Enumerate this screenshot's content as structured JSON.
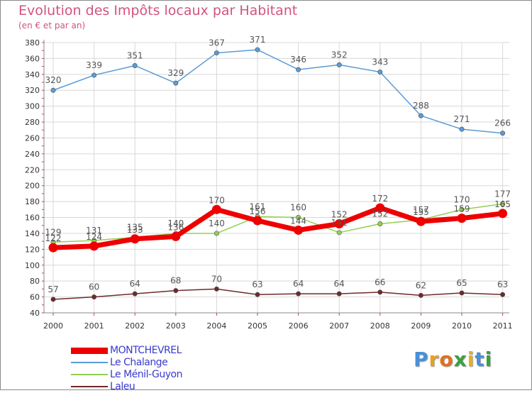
{
  "title": "Evolution des Impôts locaux par Habitant",
  "subtitle": "(en € et par an)",
  "logo": {
    "letters": [
      "P",
      "r",
      "o",
      "x",
      "i",
      "t",
      "i"
    ],
    "colors": [
      "#4a8fd8",
      "#e8a020",
      "#e07020",
      "#3aa040",
      "#e8b020",
      "#4a8fd8",
      "#3aa040"
    ]
  },
  "chart_data": {
    "type": "line",
    "x": [
      "2000",
      "2001",
      "2002",
      "2003",
      "2004",
      "2005",
      "2006",
      "2007",
      "2008",
      "2009",
      "2010",
      "2011"
    ],
    "ylim": [
      40,
      380
    ],
    "yticks": [
      "40",
      "60",
      "80",
      "100",
      "120",
      "140",
      "160",
      "180",
      "200",
      "220",
      "240",
      "260",
      "280",
      "300",
      "320",
      "340",
      "360",
      "380"
    ],
    "grid": true,
    "series": [
      {
        "name": "MONTCHEVREL",
        "color": "#ee0000",
        "emphasis": true,
        "values": [
          122,
          124,
          133,
          136,
          170,
          156,
          144,
          152,
          172,
          155,
          159,
          165
        ],
        "labels": [
          "122",
          "124",
          "133",
          "136",
          "170",
          "156",
          "144",
          "152",
          "172",
          "155",
          "159",
          "165"
        ]
      },
      {
        "name": "Le Chalange",
        "color": "#5b9bd5",
        "values": [
          320,
          339,
          351,
          329,
          367,
          371,
          346,
          352,
          343,
          288,
          271,
          266
        ],
        "labels": [
          "320",
          "339",
          "351",
          "329",
          "367",
          "371",
          "346",
          "352",
          "343",
          "288",
          "271",
          "266"
        ]
      },
      {
        "name": "Le Ménil-Guyon",
        "color": "#92d050",
        "values": [
          129,
          131,
          135,
          140,
          140,
          161,
          160,
          141,
          152,
          157,
          170,
          177
        ],
        "labels": [
          "129",
          "131",
          "135",
          "140",
          "140",
          "161",
          "160",
          "141",
          "152",
          "157",
          "170",
          "177"
        ]
      },
      {
        "name": "Laleu",
        "color": "#6e2a2a",
        "values": [
          57,
          60,
          64,
          68,
          70,
          63,
          64,
          64,
          66,
          62,
          65,
          63
        ],
        "labels": [
          "57",
          "60",
          "64",
          "68",
          "70",
          "63",
          "64",
          "64",
          "66",
          "62",
          "65",
          "63"
        ]
      }
    ]
  }
}
